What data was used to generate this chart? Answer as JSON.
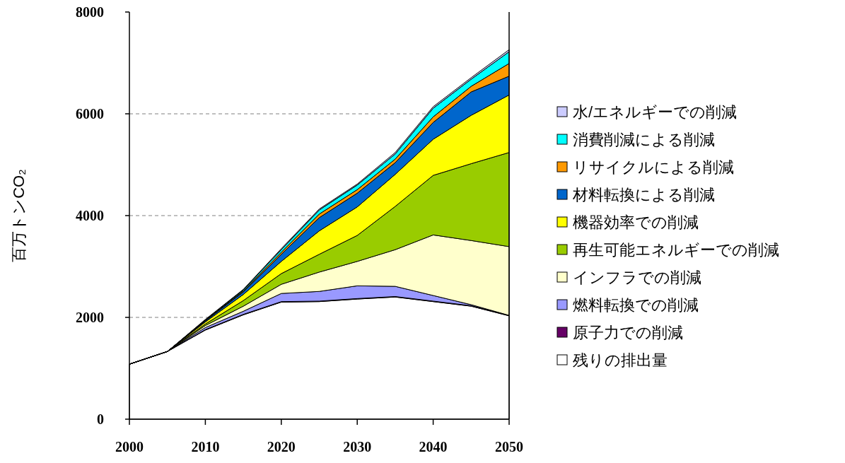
{
  "chart_data": {
    "type": "area",
    "stacked": true,
    "ylabel": "百万トンCO₂",
    "x": [
      2000,
      2005,
      2010,
      2015,
      2020,
      2025,
      2030,
      2035,
      2040,
      2045,
      2050
    ],
    "xlim": [
      2000,
      2050
    ],
    "xticks": [
      2000,
      2010,
      2020,
      2030,
      2040,
      2050
    ],
    "ylim": [
      0,
      8000
    ],
    "yticks": [
      0,
      2000,
      4000,
      6000,
      8000
    ],
    "grid": "y",
    "legend": "right",
    "series": [
      {
        "name": "残りの排出量",
        "color": "#ffffff",
        "values": [
          1080,
          1330,
          1750,
          2050,
          2300,
          2310,
          2360,
          2400,
          2310,
          2220,
          2030
        ]
      },
      {
        "name": "原子力での削減",
        "color": "#660066",
        "values": [
          0,
          0,
          10,
          10,
          10,
          10,
          10,
          10,
          10,
          10,
          10
        ]
      },
      {
        "name": "燃料転換での削減",
        "color": "#9999ff",
        "values": [
          0,
          0,
          40,
          60,
          160,
          190,
          250,
          200,
          110,
          20,
          0
        ]
      },
      {
        "name": "インフラでの削減",
        "color": "#ffffcc",
        "values": [
          0,
          0,
          40,
          100,
          180,
          380,
          480,
          720,
          1190,
          1260,
          1350
        ]
      },
      {
        "name": "再生可能エネルギーでの削減",
        "color": "#99cc00",
        "values": [
          0,
          0,
          30,
          110,
          210,
          350,
          510,
          850,
          1170,
          1510,
          1850
        ]
      },
      {
        "name": "機器効率での削減",
        "color": "#ffff00",
        "values": [
          0,
          0,
          40,
          120,
          240,
          460,
          560,
          630,
          710,
          950,
          1130
        ]
      },
      {
        "name": "材料転換による削減",
        "color": "#0066cc",
        "values": [
          0,
          0,
          20,
          50,
          140,
          260,
          270,
          230,
          330,
          460,
          370
        ]
      },
      {
        "name": "リサイクルによる削減",
        "color": "#ff9900",
        "values": [
          0,
          0,
          10,
          20,
          40,
          70,
          70,
          70,
          110,
          110,
          250
        ]
      },
      {
        "name": "消費削減による削減",
        "color": "#00ffff",
        "values": [
          0,
          0,
          10,
          20,
          50,
          80,
          90,
          100,
          170,
          140,
          230
        ]
      },
      {
        "name": "水/エネルギーでの削減",
        "color": "#ccccff",
        "values": [
          0,
          0,
          10,
          10,
          20,
          20,
          20,
          30,
          30,
          30,
          40
        ]
      }
    ]
  }
}
